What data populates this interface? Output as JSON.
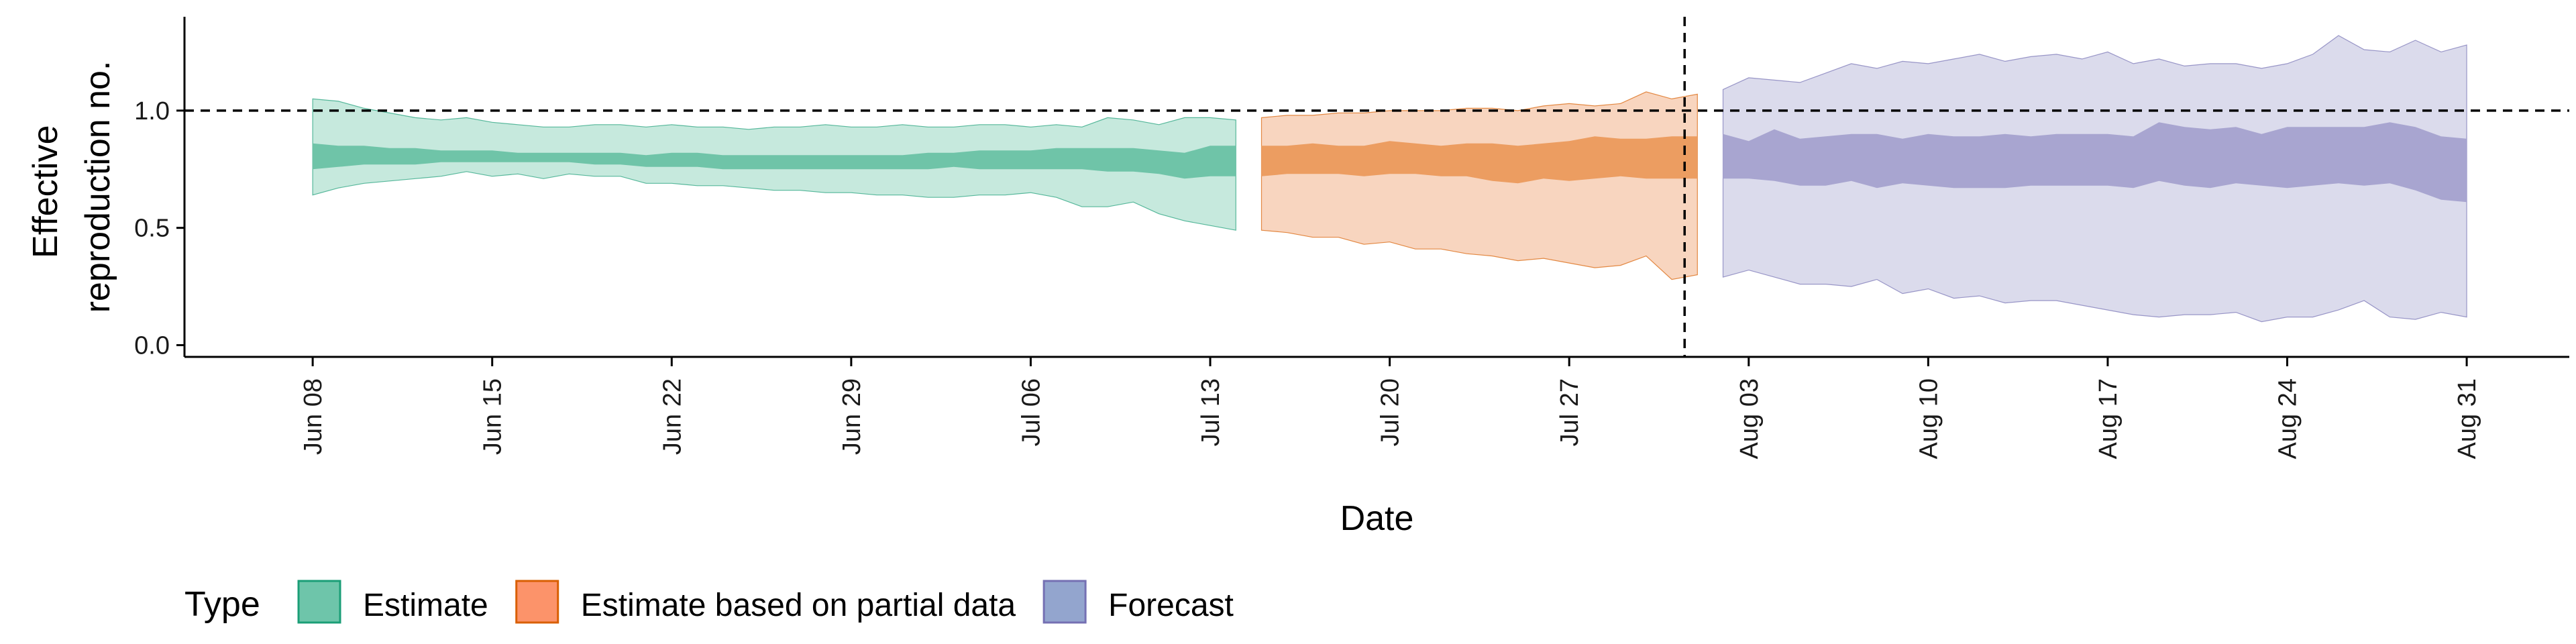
{
  "chart_data": {
    "type": "area",
    "xlabel": "Date",
    "ylabel_lines": [
      "Effective",
      "reproduction no."
    ],
    "ylim": [
      -0.05,
      1.4
    ],
    "yticks": [
      0.0,
      0.5,
      1.0
    ],
    "ytick_labels": [
      "0.0",
      "0.5",
      "1.0"
    ],
    "xlim": [
      "2020-06-03",
      "2020-09-04"
    ],
    "xticks": [
      "2020-06-08",
      "2020-06-15",
      "2020-06-22",
      "2020-06-29",
      "2020-07-06",
      "2020-07-13",
      "2020-07-20",
      "2020-07-27",
      "2020-08-03",
      "2020-08-10",
      "2020-08-17",
      "2020-08-24",
      "2020-08-31"
    ],
    "xtick_labels": [
      "Jun 08",
      "Jun 15",
      "Jun 22",
      "Jun 29",
      "Jul 06",
      "Jul 13",
      "Jul 20",
      "Jul 27",
      "Aug 03",
      "Aug 10",
      "Aug 17",
      "Aug 24",
      "Aug 31"
    ],
    "reference_line_y": 1.0,
    "reference_line_x": "2020-08-01",
    "legend": {
      "title": "Type",
      "placement": "bottom",
      "entries": [
        {
          "label": "Estimate",
          "fill": "#66C2A5",
          "stroke": "#1B9E77"
        },
        {
          "label": "Estimate based on partial data",
          "fill": "#FC8D62",
          "stroke": "#D95F02"
        },
        {
          "label": "Forecast",
          "fill": "#8DA0CB",
          "stroke": "#7570B3"
        }
      ]
    },
    "series": [
      {
        "name": "Estimate",
        "outer_fill": "#c6e9dd",
        "inner_fill": "#6fc4a8",
        "outer_stroke": "#1B9E77",
        "x": [
          "2020-06-08",
          "2020-06-09",
          "2020-06-10",
          "2020-06-11",
          "2020-06-12",
          "2020-06-13",
          "2020-06-14",
          "2020-06-15",
          "2020-06-16",
          "2020-06-17",
          "2020-06-18",
          "2020-06-19",
          "2020-06-20",
          "2020-06-21",
          "2020-06-22",
          "2020-06-23",
          "2020-06-24",
          "2020-06-25",
          "2020-06-26",
          "2020-06-27",
          "2020-06-28",
          "2020-06-29",
          "2020-06-30",
          "2020-07-01",
          "2020-07-02",
          "2020-07-03",
          "2020-07-04",
          "2020-07-05",
          "2020-07-06",
          "2020-07-07",
          "2020-07-08",
          "2020-07-09",
          "2020-07-10",
          "2020-07-11",
          "2020-07-12",
          "2020-07-13",
          "2020-07-14"
        ],
        "upper90": [
          1.05,
          1.04,
          1.01,
          0.99,
          0.97,
          0.96,
          0.97,
          0.95,
          0.94,
          0.93,
          0.93,
          0.94,
          0.94,
          0.93,
          0.94,
          0.93,
          0.93,
          0.92,
          0.93,
          0.93,
          0.94,
          0.93,
          0.93,
          0.94,
          0.93,
          0.93,
          0.94,
          0.94,
          0.93,
          0.94,
          0.93,
          0.97,
          0.96,
          0.94,
          0.97,
          0.97,
          0.96
        ],
        "upper50": [
          0.86,
          0.85,
          0.85,
          0.84,
          0.84,
          0.83,
          0.83,
          0.83,
          0.82,
          0.82,
          0.82,
          0.82,
          0.82,
          0.81,
          0.82,
          0.82,
          0.81,
          0.81,
          0.81,
          0.81,
          0.81,
          0.81,
          0.81,
          0.81,
          0.82,
          0.82,
          0.83,
          0.83,
          0.83,
          0.84,
          0.84,
          0.84,
          0.84,
          0.83,
          0.82,
          0.85,
          0.85
        ],
        "lower50": [
          0.75,
          0.76,
          0.77,
          0.77,
          0.77,
          0.78,
          0.78,
          0.78,
          0.78,
          0.78,
          0.78,
          0.77,
          0.77,
          0.76,
          0.76,
          0.76,
          0.75,
          0.75,
          0.75,
          0.75,
          0.75,
          0.75,
          0.75,
          0.75,
          0.75,
          0.76,
          0.75,
          0.75,
          0.75,
          0.75,
          0.75,
          0.74,
          0.74,
          0.73,
          0.71,
          0.72,
          0.72
        ],
        "lower90": [
          0.64,
          0.67,
          0.69,
          0.7,
          0.71,
          0.72,
          0.74,
          0.72,
          0.73,
          0.71,
          0.73,
          0.72,
          0.72,
          0.69,
          0.69,
          0.68,
          0.68,
          0.67,
          0.66,
          0.66,
          0.65,
          0.65,
          0.64,
          0.64,
          0.63,
          0.63,
          0.64,
          0.64,
          0.65,
          0.63,
          0.59,
          0.59,
          0.61,
          0.56,
          0.53,
          0.51,
          0.49
        ]
      },
      {
        "name": "Estimate based on partial data",
        "outer_fill": "#f8d5bf",
        "inner_fill": "#ec9d61",
        "outer_stroke": "#D95F02",
        "x": [
          "2020-07-15",
          "2020-07-16",
          "2020-07-17",
          "2020-07-18",
          "2020-07-19",
          "2020-07-20",
          "2020-07-21",
          "2020-07-22",
          "2020-07-23",
          "2020-07-24",
          "2020-07-25",
          "2020-07-26",
          "2020-07-27",
          "2020-07-28",
          "2020-07-29",
          "2020-07-30",
          "2020-07-31",
          "2020-08-01"
        ],
        "upper90": [
          0.97,
          0.98,
          0.98,
          0.99,
          0.99,
          1.0,
          1.0,
          1.0,
          1.01,
          1.01,
          1.0,
          1.02,
          1.03,
          1.02,
          1.03,
          1.08,
          1.05,
          1.07
        ],
        "upper50": [
          0.85,
          0.85,
          0.86,
          0.85,
          0.85,
          0.87,
          0.86,
          0.85,
          0.86,
          0.86,
          0.85,
          0.86,
          0.87,
          0.89,
          0.88,
          0.88,
          0.89,
          0.89
        ],
        "lower50": [
          0.72,
          0.73,
          0.73,
          0.73,
          0.72,
          0.73,
          0.73,
          0.72,
          0.72,
          0.7,
          0.69,
          0.71,
          0.7,
          0.71,
          0.72,
          0.71,
          0.71,
          0.71
        ],
        "lower90": [
          0.49,
          0.48,
          0.46,
          0.46,
          0.43,
          0.44,
          0.41,
          0.41,
          0.39,
          0.38,
          0.36,
          0.37,
          0.35,
          0.33,
          0.34,
          0.38,
          0.28,
          0.3
        ]
      },
      {
        "name": "Forecast",
        "outer_fill": "#dbdbec",
        "inner_fill": "#a8a5d0",
        "outer_stroke": "#7570B3",
        "x": [
          "2020-08-02",
          "2020-08-03",
          "2020-08-04",
          "2020-08-05",
          "2020-08-06",
          "2020-08-07",
          "2020-08-08",
          "2020-08-09",
          "2020-08-10",
          "2020-08-11",
          "2020-08-12",
          "2020-08-13",
          "2020-08-14",
          "2020-08-15",
          "2020-08-16",
          "2020-08-17",
          "2020-08-18",
          "2020-08-19",
          "2020-08-20",
          "2020-08-21",
          "2020-08-22",
          "2020-08-23",
          "2020-08-24",
          "2020-08-25",
          "2020-08-26",
          "2020-08-27",
          "2020-08-28",
          "2020-08-29",
          "2020-08-30",
          "2020-08-31"
        ],
        "upper90": [
          1.09,
          1.14,
          1.13,
          1.12,
          1.16,
          1.2,
          1.18,
          1.21,
          1.2,
          1.22,
          1.24,
          1.21,
          1.23,
          1.24,
          1.22,
          1.25,
          1.2,
          1.22,
          1.19,
          1.2,
          1.2,
          1.18,
          1.2,
          1.24,
          1.32,
          1.26,
          1.25,
          1.3,
          1.25,
          1.28
        ],
        "upper50": [
          0.9,
          0.87,
          0.92,
          0.88,
          0.89,
          0.9,
          0.9,
          0.88,
          0.9,
          0.89,
          0.89,
          0.9,
          0.89,
          0.9,
          0.9,
          0.9,
          0.89,
          0.95,
          0.93,
          0.92,
          0.93,
          0.9,
          0.93,
          0.93,
          0.93,
          0.93,
          0.95,
          0.93,
          0.89,
          0.88
        ],
        "lower50": [
          0.71,
          0.71,
          0.7,
          0.68,
          0.68,
          0.7,
          0.67,
          0.69,
          0.68,
          0.67,
          0.67,
          0.67,
          0.68,
          0.68,
          0.68,
          0.68,
          0.67,
          0.7,
          0.68,
          0.67,
          0.69,
          0.68,
          0.67,
          0.68,
          0.69,
          0.68,
          0.69,
          0.66,
          0.62,
          0.61
        ],
        "lower90": [
          0.29,
          0.32,
          0.29,
          0.26,
          0.26,
          0.25,
          0.28,
          0.22,
          0.24,
          0.2,
          0.21,
          0.18,
          0.19,
          0.19,
          0.17,
          0.15,
          0.13,
          0.12,
          0.13,
          0.13,
          0.14,
          0.1,
          0.12,
          0.12,
          0.15,
          0.19,
          0.12,
          0.11,
          0.14,
          0.12
        ]
      }
    ]
  }
}
